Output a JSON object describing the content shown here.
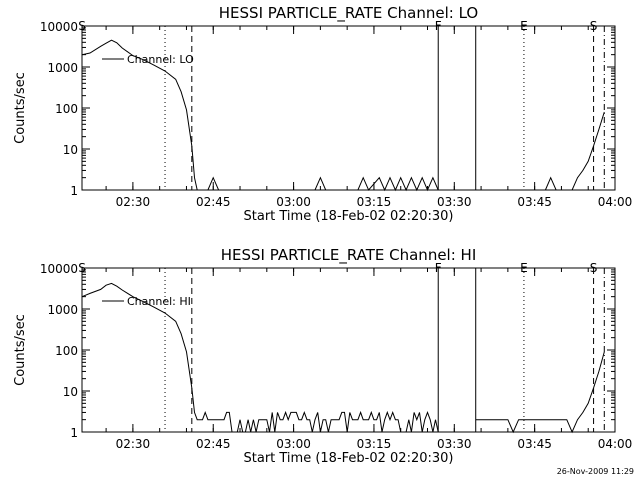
{
  "footer": {
    "timestamp": "26-Nov-2009 11:29"
  },
  "chart_data": [
    {
      "type": "line",
      "title": "HESSI PARTICLE_RATE Channel: LO",
      "xlabel": "Start Time (18-Feb-02 02:20:30)",
      "ylabel": "Counts/sec",
      "y_scale": "log",
      "ylim": [
        1,
        10000
      ],
      "xlim": [
        "02:20:30",
        "04:00"
      ],
      "x_ticks": [
        "02:30",
        "02:45",
        "03:00",
        "03:15",
        "03:30",
        "03:45",
        "04:00"
      ],
      "y_ticks": [
        "1",
        "10",
        "100",
        "1000",
        "10000"
      ],
      "legend": {
        "label": "Channel: LO",
        "position": "top-left"
      },
      "markers": [
        {
          "label": "S",
          "time": "02:20:30",
          "style": "dash-dot"
        },
        {
          "label": "",
          "time": "02:36",
          "style": "dotted"
        },
        {
          "label": "",
          "time": "02:41",
          "style": "dashed"
        },
        {
          "label": "F",
          "time": "03:27",
          "style": "solid"
        },
        {
          "label": "",
          "time": "03:34",
          "style": "solid"
        },
        {
          "label": "E",
          "time": "03:43",
          "style": "dotted"
        },
        {
          "label": "S",
          "time": "03:56",
          "style": "dashed"
        },
        {
          "label": "",
          "time": "03:58",
          "style": "dash-dot"
        }
      ],
      "series": [
        {
          "x": [
            "02:20:30",
            "02:22",
            "02:24",
            "02:25",
            "02:26",
            "02:27",
            "02:28",
            "02:30",
            "02:32",
            "02:34",
            "02:36",
            "02:38",
            "02:39",
            "02:40",
            "02:41",
            "02:41:30",
            "02:42",
            "02:43",
            "02:44"
          ],
          "values": [
            2000,
            2200,
            3200,
            3800,
            4500,
            3900,
            2900,
            1900,
            1500,
            1100,
            800,
            500,
            250,
            90,
            12,
            2,
            1,
            1,
            1
          ]
        },
        {
          "x": [
            "02:44",
            "02:45",
            "02:46",
            "03:04",
            "03:05",
            "03:06",
            "03:12",
            "03:13",
            "03:14",
            "03:16",
            "03:17",
            "03:18",
            "03:19",
            "03:20",
            "03:21",
            "03:22",
            "03:23",
            "03:24",
            "03:25",
            "03:26",
            "03:27"
          ],
          "values": [
            1,
            2,
            1,
            1,
            2,
            1,
            1,
            2,
            1,
            2,
            1,
            2,
            1,
            2,
            1,
            2,
            1,
            2,
            1,
            2,
            1
          ]
        },
        {
          "x": [
            "03:47",
            "03:48",
            "03:49",
            "03:52",
            "03:53",
            "03:54",
            "03:55",
            "03:56",
            "03:57",
            "03:58"
          ],
          "values": [
            1,
            2,
            1,
            1,
            2,
            3,
            5,
            12,
            30,
            80
          ]
        }
      ]
    },
    {
      "type": "line",
      "title": "HESSI PARTICLE_RATE Channel: HI",
      "xlabel": "Start Time (18-Feb-02 02:20:30)",
      "ylabel": "Counts/sec",
      "y_scale": "log",
      "ylim": [
        1,
        10000
      ],
      "xlim": [
        "02:20:30",
        "04:00"
      ],
      "x_ticks": [
        "02:30",
        "02:45",
        "03:00",
        "03:15",
        "03:30",
        "03:45",
        "04:00"
      ],
      "y_ticks": [
        "1",
        "10",
        "100",
        "1000",
        "10000"
      ],
      "legend": {
        "label": "Channel: HI",
        "position": "top-left"
      },
      "markers": [
        {
          "label": "S",
          "time": "02:20:30",
          "style": "dash-dot"
        },
        {
          "label": "",
          "time": "02:36",
          "style": "dotted"
        },
        {
          "label": "",
          "time": "02:41",
          "style": "dashed"
        },
        {
          "label": "F",
          "time": "03:27",
          "style": "solid"
        },
        {
          "label": "",
          "time": "03:34",
          "style": "solid"
        },
        {
          "label": "E",
          "time": "03:43",
          "style": "dotted"
        },
        {
          "label": "S",
          "time": "03:56",
          "style": "dashed"
        },
        {
          "label": "",
          "time": "03:58",
          "style": "dash-dot"
        }
      ],
      "series": [
        {
          "x": [
            "02:20:30",
            "02:22",
            "02:24",
            "02:25",
            "02:26",
            "02:27",
            "02:28",
            "02:30",
            "02:32",
            "02:34",
            "02:36",
            "02:38",
            "02:39",
            "02:40",
            "02:41",
            "02:41:30",
            "02:42"
          ],
          "values": [
            2000,
            2400,
            3000,
            3800,
            4200,
            3600,
            2900,
            2000,
            1500,
            1100,
            800,
            500,
            250,
            90,
            12,
            3,
            2
          ],
          "noise": {
            "from": "02:42",
            "to": "03:27",
            "low": 1,
            "high": 3
          }
        },
        {
          "x": [
            "03:34",
            "03:35",
            "03:36",
            "03:40",
            "03:41",
            "03:42",
            "03:43",
            "03:44",
            "03:51",
            "03:52",
            "03:53",
            "03:54",
            "03:55",
            "03:56",
            "03:57",
            "03:58"
          ],
          "values": [
            2,
            2,
            2,
            2,
            1,
            2,
            2,
            2,
            2,
            1,
            2,
            3,
            5,
            12,
            30,
            90
          ]
        }
      ]
    }
  ]
}
